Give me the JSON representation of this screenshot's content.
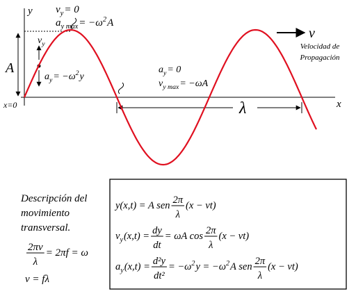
{
  "axes": {
    "y": "y",
    "x": "x",
    "origin": "x=0",
    "amplitude": "A",
    "wavelength": "λ"
  },
  "annotations": [
    {
      "parts": [
        {
          "t": "v"
        },
        {
          "sub": "y"
        },
        {
          "t": " = 0"
        }
      ]
    },
    {
      "parts": [
        {
          "t": "a"
        },
        {
          "sub": "y  max"
        },
        {
          "t": " = −ω"
        },
        {
          "sup": "2"
        },
        {
          "t": "A"
        }
      ]
    },
    {
      "parts": [
        {
          "t": "v"
        },
        {
          "sub": "y"
        }
      ]
    },
    {
      "parts": [
        {
          "t": "a"
        },
        {
          "sub": "y"
        },
        {
          "t": " = −ω"
        },
        {
          "sup": "2"
        },
        {
          "t": "y"
        }
      ]
    },
    {
      "parts": [
        {
          "t": "a"
        },
        {
          "sub": "y"
        },
        {
          "t": " = 0"
        }
      ]
    },
    {
      "parts": [
        {
          "t": "v"
        },
        {
          "sub": "y  max"
        },
        {
          "t": " = −ωA"
        }
      ]
    },
    {
      "parts": [
        {
          "t": "v"
        }
      ]
    }
  ],
  "propagation": [
    "Velocidad de",
    "Propagación"
  ],
  "description": [
    "Descripción del",
    "movimiento",
    "transversal."
  ],
  "left_formulas": [
    {
      "parts": [
        {
          "frac": [
            "2πv",
            "λ"
          ]
        },
        {
          "t": " = 2πf = ω"
        }
      ]
    },
    {
      "parts": [
        {
          "t": "v = fλ"
        }
      ]
    }
  ],
  "box_formulas": [
    {
      "parts": [
        {
          "t": "y(x,t) = A sen"
        },
        {
          "frac": [
            "2π",
            "λ"
          ]
        },
        {
          "t": "(x − vt)"
        }
      ]
    },
    {
      "parts": [
        {
          "t": "v"
        },
        {
          "sub": "y"
        },
        {
          "t": "(x,t) = "
        },
        {
          "frac": [
            "dy",
            "dt"
          ]
        },
        {
          "t": " = ωA cos "
        },
        {
          "frac": [
            "2π",
            "λ"
          ]
        },
        {
          "t": "(x − vt)"
        }
      ]
    },
    {
      "parts": [
        {
          "t": "a"
        },
        {
          "sub": "y"
        },
        {
          "t": "(x,t) = "
        },
        {
          "frac": [
            "d²y",
            "dt²"
          ]
        },
        {
          "t": " = −ω"
        },
        {
          "sup": "2"
        },
        {
          "t": "y = −ω"
        },
        {
          "sup": "2"
        },
        {
          "t": "A sen"
        },
        {
          "frac": [
            "2π",
            "λ"
          ]
        },
        {
          "t": "(x − vt)"
        }
      ]
    }
  ]
}
